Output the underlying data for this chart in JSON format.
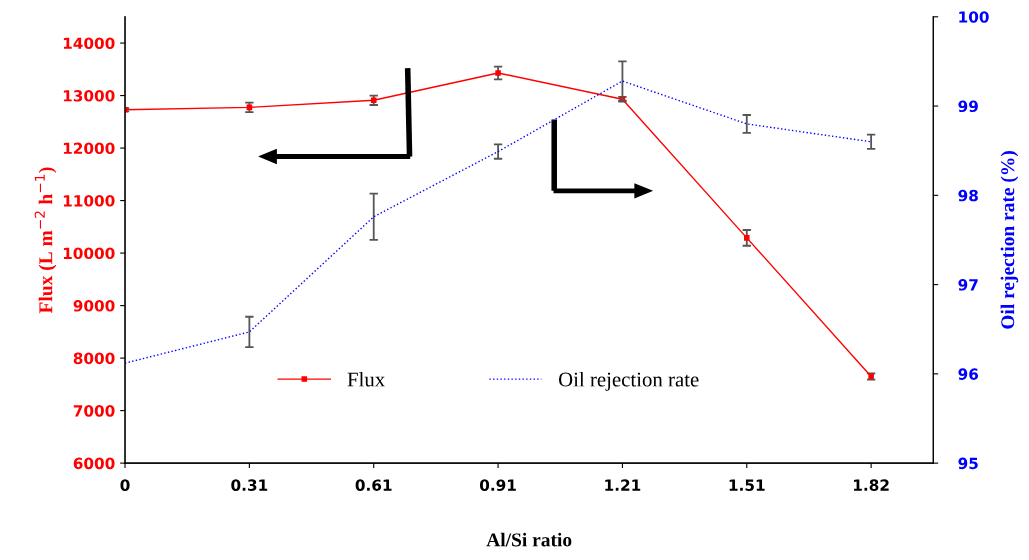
{
  "chart_data": {
    "type": "line",
    "xlabel": "Al/Si ratio",
    "ylabel": "Flux (L m$^{−2}$ h$^{−1}$)",
    "y2label": "Oil rejection rate (%)",
    "categories": [
      "0",
      "0.31",
      "0.61",
      "0.91",
      "1.21",
      "1.51",
      "1.82"
    ],
    "series": [
      {
        "name": "Flux",
        "color": "#ff0000",
        "marker": "square",
        "line_style": "solid",
        "values": [
          12730,
          12775,
          12910,
          13430,
          12930,
          10290,
          7650
        ],
        "errors": [
          30,
          90,
          90,
          120,
          45,
          150,
          60
        ]
      },
      {
        "name": "Oil rejection rate",
        "color": "#0000ff",
        "marker": "none",
        "line_style": "dotted",
        "axis": "y2",
        "values": [
          96.12,
          96.47,
          97.76,
          98.49,
          99.28,
          98.8,
          98.6
        ],
        "errors": [
          null,
          0.17,
          0.26,
          0.08,
          0.22,
          0.1,
          0.08
        ]
      }
    ],
    "ylim": [
      6000,
      14500
    ],
    "yticks": [
      6000,
      7000,
      8000,
      9000,
      10000,
      11000,
      12000,
      13000,
      14000
    ],
    "y2lim": [
      95,
      100
    ],
    "y2ticks": [
      95,
      96,
      97,
      98,
      99,
      100
    ],
    "grid": false,
    "legend": "bottom"
  }
}
